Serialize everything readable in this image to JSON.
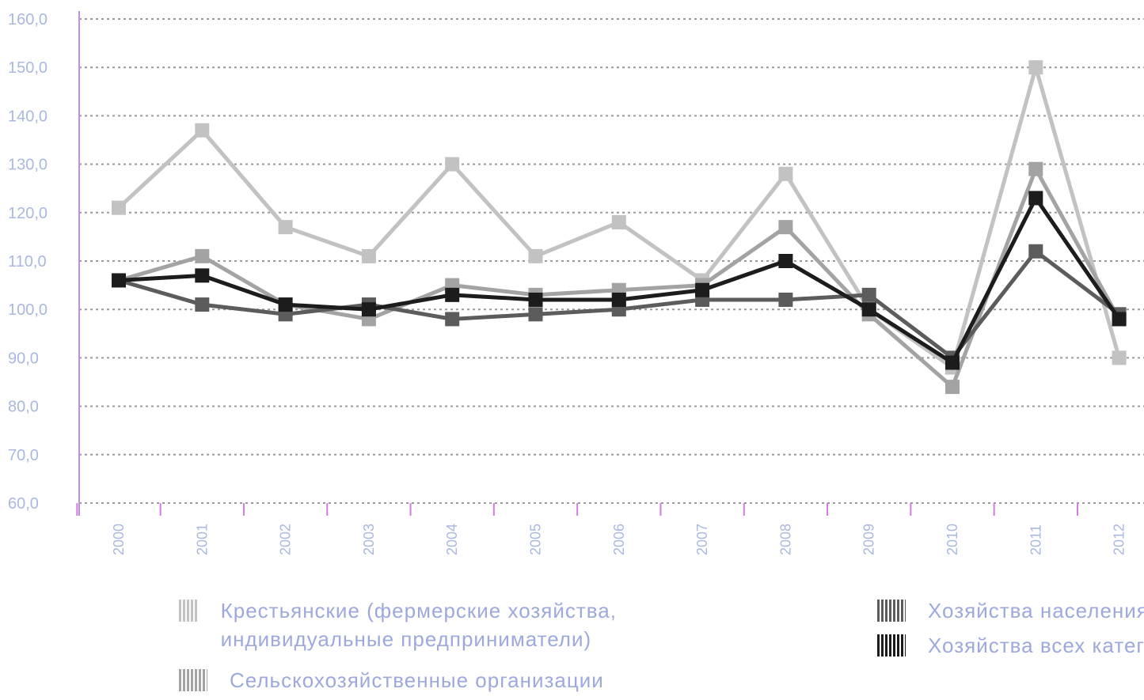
{
  "chart_data": {
    "type": "line",
    "categories": [
      "2000",
      "2001",
      "2002",
      "2003",
      "2004",
      "2005",
      "2006",
      "2007",
      "2008",
      "2009",
      "2010",
      "2011",
      "2012"
    ],
    "series": [
      {
        "name": "Крестьянские (фермерские хозяйства, индивидуальные предприниматели)",
        "values": [
          121,
          137,
          117,
          111,
          130,
          111,
          118,
          106,
          128,
          100,
          88,
          150,
          90
        ],
        "color": "#c2c2c2"
      },
      {
        "name": "Сельскохозяйственные организации",
        "values": [
          106,
          111,
          101,
          98,
          105,
          103,
          104,
          105,
          117,
          99,
          84,
          129,
          98
        ],
        "color": "#a3a3a3"
      },
      {
        "name": "Хозяйства населения",
        "values": [
          106,
          101,
          99,
          101,
          98,
          99,
          100,
          102,
          102,
          103,
          90,
          112,
          99
        ],
        "color": "#5c5c5c"
      },
      {
        "name": "Хозяйства всех категорий",
        "values": [
          106,
          107,
          101,
          100,
          103,
          102,
          102,
          104,
          110,
          100,
          89,
          123,
          98
        ],
        "color": "#1c1c1c"
      }
    ],
    "y_ticks": [
      "60,0",
      "70,0",
      "80,0",
      "90,0",
      "100,0",
      "110,0",
      "120,0",
      "130,0",
      "140,0",
      "150,0",
      "160,0"
    ],
    "ylim": [
      60,
      160
    ],
    "grid": true,
    "legend_position": "bottom",
    "title": "",
    "xlabel": "",
    "ylabel": ""
  }
}
